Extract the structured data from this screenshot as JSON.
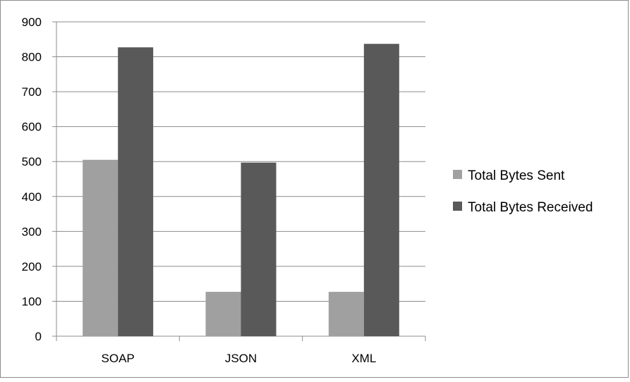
{
  "chart_data": {
    "type": "bar",
    "categories": [
      "SOAP",
      "JSON",
      "XML"
    ],
    "series": [
      {
        "name": "Total Bytes Sent",
        "values": [
          505,
          127,
          127
        ],
        "color": "#a0a0a0"
      },
      {
        "name": "Total Bytes Received",
        "values": [
          827,
          497,
          837
        ],
        "color": "#595959"
      }
    ],
    "ylim": [
      0,
      900
    ],
    "yticks": [
      0,
      100,
      200,
      300,
      400,
      500,
      600,
      700,
      800,
      900
    ],
    "grid": true,
    "legend_position": "right",
    "title": "",
    "xlabel": "",
    "ylabel": ""
  }
}
